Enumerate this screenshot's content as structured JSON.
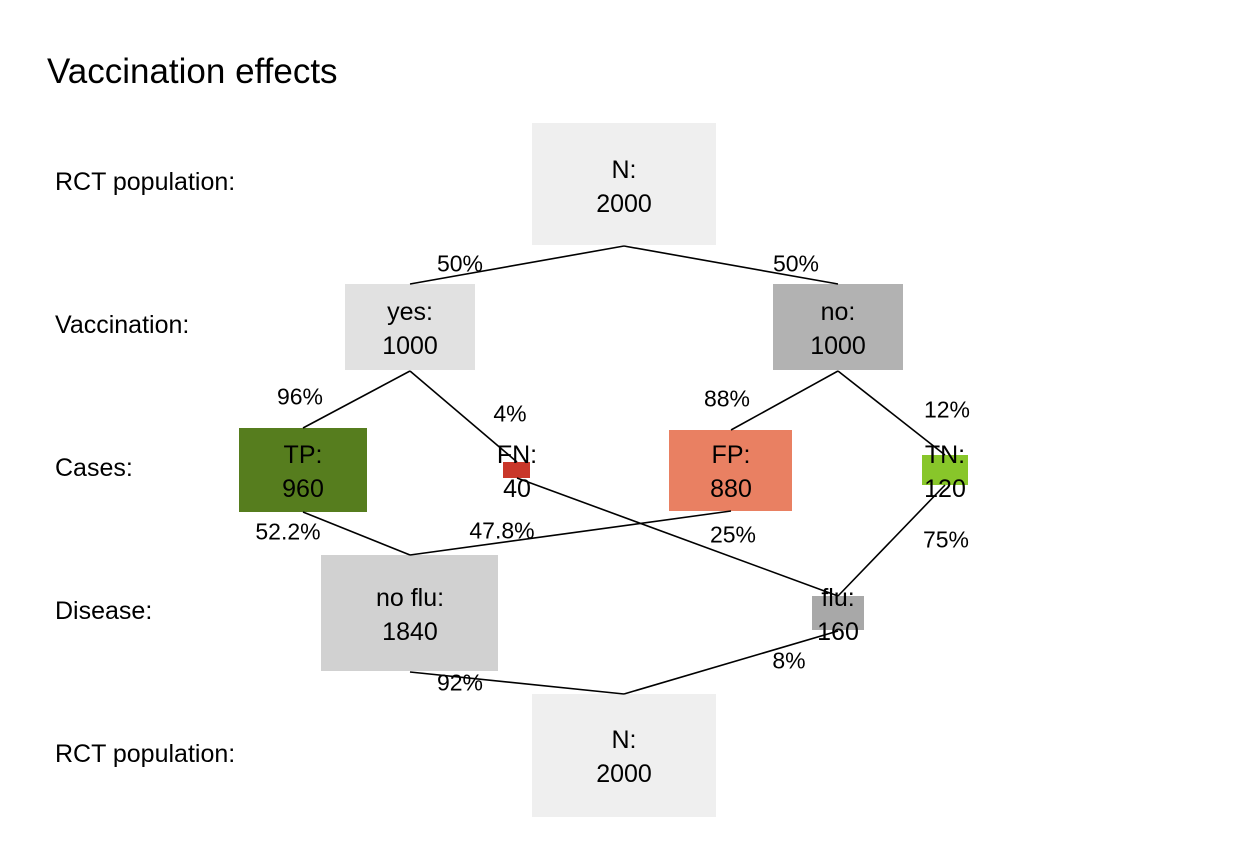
{
  "title": "Vaccination effects",
  "row_labels": {
    "top_population": "RCT population:",
    "vaccination": "Vaccination:",
    "cases": "Cases:",
    "disease": "Disease:",
    "bottom_population": "RCT population:"
  },
  "nodes": {
    "n_top": {
      "label": "N:",
      "value": "2000",
      "color": "#efefef"
    },
    "yes": {
      "label": "yes:",
      "value": "1000",
      "color": "#e1e1e1"
    },
    "no": {
      "label": "no:",
      "value": "1000",
      "color": "#b2b2b2"
    },
    "tp": {
      "label": "TP:",
      "value": "960",
      "color": "#567d1e"
    },
    "fn": {
      "label": "FN:",
      "value": "40",
      "color": "#c9372a"
    },
    "fp": {
      "label": "FP:",
      "value": "880",
      "color": "#e98062"
    },
    "tn": {
      "label": "TN:",
      "value": "120",
      "color": "#88c62a"
    },
    "no_flu": {
      "label": "no flu:",
      "value": "1840",
      "color": "#d1d1d1"
    },
    "flu": {
      "label": "flu:",
      "value": "160",
      "color": "#a8a8a8"
    },
    "n_bottom": {
      "label": "N:",
      "value": "2000",
      "color": "#efefef"
    }
  },
  "edges": {
    "n_yes": "50%",
    "n_no": "50%",
    "yes_tp": "96%",
    "yes_fn": "4%",
    "no_fp": "88%",
    "no_tn": "12%",
    "tp_noflu": "52.2%",
    "fp_noflu": "47.8%",
    "fn_flu": "25%",
    "tn_flu": "75%",
    "noflu_n": "92%",
    "flu_n": "8%"
  }
}
